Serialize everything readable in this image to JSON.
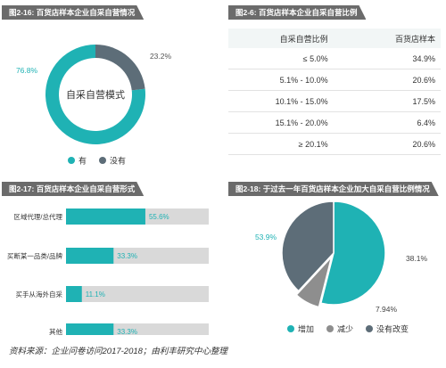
{
  "colors": {
    "teal": "#1fb2b4",
    "slate": "#5d6d78",
    "gray": "#8e8e8e",
    "track": "#d9d9d9"
  },
  "source": "资料来源：企业问卷访问2017-2018；由利丰研究中心整理",
  "chart_data": [
    {
      "id": "fig-2-16",
      "type": "pie",
      "title": "图2-16: 百货店样本企业自采自营情况",
      "center_label": "自采自营模式",
      "series": [
        {
          "name": "有",
          "value": 76.8,
          "label": "76.8%",
          "color": "#1fb2b4"
        },
        {
          "name": "没有",
          "value": 23.2,
          "label": "23.2%",
          "color": "#5d6d78"
        }
      ]
    },
    {
      "id": "fig-2-6",
      "type": "table",
      "title": "图2-6: 百货店样本企业自采自营比例",
      "columns": [
        "自采自营比例",
        "百货店样本"
      ],
      "rows": [
        [
          "≤ 5.0%",
          "34.9%"
        ],
        [
          "5.1% - 10.0%",
          "20.6%"
        ],
        [
          "10.1% - 15.0%",
          "17.5%"
        ],
        [
          "15.1% - 20.0%",
          "6.4%"
        ],
        [
          "≥ 20.1%",
          "20.6%"
        ]
      ]
    },
    {
      "id": "fig-2-17",
      "type": "bar",
      "title": "图2-17: 百货店样本企业自采自营形式",
      "categories": [
        "区域代理/总代理",
        "买断某一品类/品牌",
        "买手从海外自采",
        "其他"
      ],
      "values": [
        55.6,
        33.3,
        11.1,
        33.3
      ],
      "labels": [
        "55.6%",
        "33.3%",
        "11.1%",
        "33.3%"
      ],
      "xlim": [
        0,
        100
      ]
    },
    {
      "id": "fig-2-18",
      "type": "pie",
      "title": "图2-18: 于过去一年百货店样本企业加大自采自营比例情况",
      "series": [
        {
          "name": "增加",
          "value": 53.9,
          "label": "53.9%",
          "color": "#1fb2b4"
        },
        {
          "name": "减少",
          "value": 7.94,
          "label": "7.94%",
          "color": "#8e8e8e"
        },
        {
          "name": "没有改变",
          "value": 38.1,
          "label": "38.1%",
          "color": "#5d6d78"
        }
      ]
    }
  ]
}
